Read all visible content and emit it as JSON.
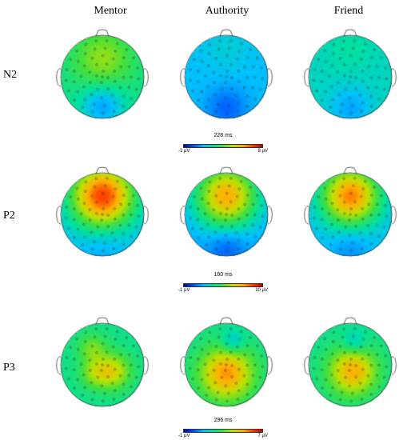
{
  "columns": [
    "Mentor",
    "Authority",
    "Friend"
  ],
  "rows": [
    {
      "label": "N2",
      "time": "228 ms",
      "min_label": "-1 µV",
      "max_label": "8 µV",
      "maps": [
        {
          "condition": "Mentor",
          "base": 0.45,
          "blobs": [
            {
              "u": 0.0,
              "v": -0.45,
              "s": 0.5,
              "a": 0.18
            },
            {
              "u": 0.0,
              "v": 0.7,
              "s": 0.35,
              "a": -0.2
            }
          ]
        },
        {
          "condition": "Authority",
          "base": 0.3,
          "blobs": [
            {
              "u": 0.0,
              "v": 0.75,
              "s": 0.35,
              "a": -0.15
            },
            {
              "u": 0.0,
              "v": -0.7,
              "s": 0.4,
              "a": 0.05
            }
          ]
        },
        {
          "condition": "Friend",
          "base": 0.38,
          "blobs": [
            {
              "u": 0.0,
              "v": 0.75,
              "s": 0.35,
              "a": -0.12
            },
            {
              "u": 0.0,
              "v": -0.7,
              "s": 0.4,
              "a": 0.04
            }
          ]
        }
      ]
    },
    {
      "label": "P2",
      "time": "160 ms",
      "min_label": "-1 µV",
      "max_label": "10 µV",
      "maps": [
        {
          "condition": "Mentor",
          "base": 0.3,
          "blobs": [
            {
              "u": 0.0,
              "v": -0.45,
              "s": 0.55,
              "a": 0.62
            },
            {
              "u": 0.0,
              "v": 0.75,
              "s": 0.35,
              "a": -0.05
            }
          ]
        },
        {
          "condition": "Authority",
          "base": 0.25,
          "blobs": [
            {
              "u": 0.0,
              "v": -0.45,
              "s": 0.55,
              "a": 0.55
            },
            {
              "u": 0.0,
              "v": 0.8,
              "s": 0.3,
              "a": -0.12
            }
          ]
        },
        {
          "condition": "Friend",
          "base": 0.3,
          "blobs": [
            {
              "u": 0.0,
              "v": -0.45,
              "s": 0.5,
              "a": 0.55
            },
            {
              "u": 0.0,
              "v": 0.8,
              "s": 0.3,
              "a": -0.08
            }
          ]
        }
      ]
    },
    {
      "label": "P3",
      "time": "296 ms",
      "min_label": "-1 µV",
      "max_label": "7 µV",
      "maps": [
        {
          "condition": "Mentor",
          "base": 0.45,
          "blobs": [
            {
              "u": -0.25,
              "v": -0.4,
              "s": 0.25,
              "a": 0.15
            },
            {
              "u": 0.25,
              "v": 0.15,
              "s": 0.3,
              "a": 0.25
            },
            {
              "u": -0.2,
              "v": 0.2,
              "s": 0.25,
              "a": 0.15
            }
          ]
        },
        {
          "condition": "Authority",
          "base": 0.45,
          "blobs": [
            {
              "u": 0.0,
              "v": 0.2,
              "s": 0.45,
              "a": 0.38
            },
            {
              "u": 0.15,
              "v": -0.55,
              "s": 0.2,
              "a": -0.15
            }
          ]
        },
        {
          "condition": "Friend",
          "base": 0.45,
          "blobs": [
            {
              "u": 0.05,
              "v": 0.15,
              "s": 0.4,
              "a": 0.35
            },
            {
              "u": 0.1,
              "v": -0.55,
              "s": 0.2,
              "a": -0.12
            }
          ]
        }
      ]
    }
  ]
}
